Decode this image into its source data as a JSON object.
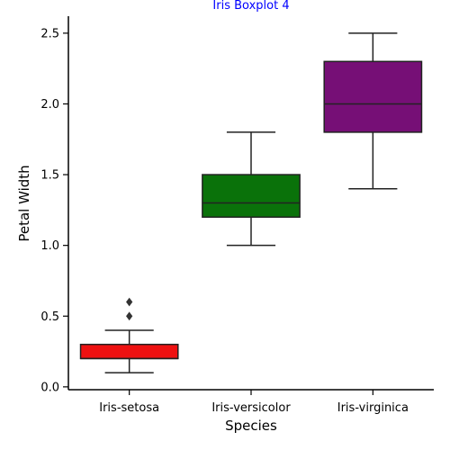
{
  "chart_data": {
    "type": "boxplot",
    "title": "Iris Boxplot 4",
    "title_color": "#0000ff",
    "xlabel": "Species",
    "ylabel": "Petal Width",
    "ylim": [
      -0.02,
      2.62
    ],
    "yticks": [
      "0.0",
      "0.5",
      "1.0",
      "1.5",
      "2.0",
      "2.5"
    ],
    "grid": false,
    "categories": [
      "Iris-setosa",
      "Iris-versicolor",
      "Iris-virginica"
    ],
    "boxes": [
      {
        "category": "Iris-setosa",
        "color": "#ee1111",
        "whisker_low": 0.1,
        "q1": 0.2,
        "median": 0.2,
        "q3": 0.3,
        "whisker_high": 0.4,
        "outliers": [
          0.5,
          0.6
        ]
      },
      {
        "category": "Iris-versicolor",
        "color": "#0a720a",
        "whisker_low": 1.0,
        "q1": 1.2,
        "median": 1.3,
        "q3": 1.5,
        "whisker_high": 1.8,
        "outliers": []
      },
      {
        "category": "Iris-virginica",
        "color": "#760f76",
        "whisker_low": 1.4,
        "q1": 1.8,
        "median": 2.0,
        "q3": 2.3,
        "whisker_high": 2.5,
        "outliers": []
      }
    ]
  }
}
